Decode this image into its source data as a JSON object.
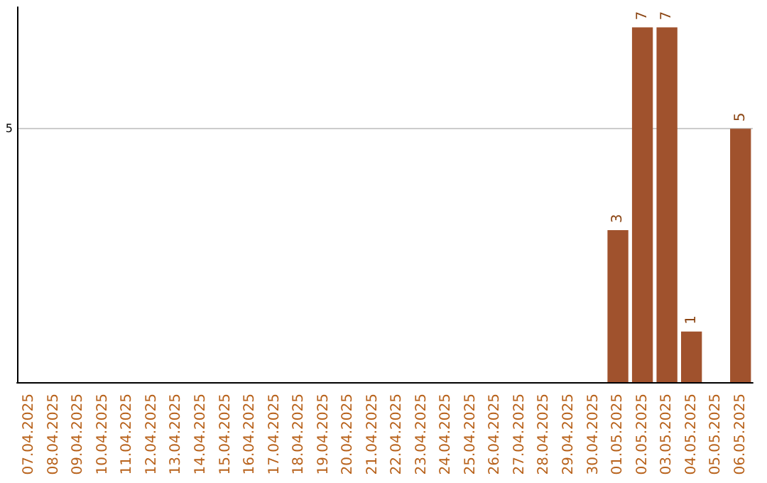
{
  "chart_data": {
    "type": "bar",
    "categories": [
      "07.04.2025",
      "08.04.2025",
      "09.04.2025",
      "10.04.2025",
      "11.04.2025",
      "12.04.2025",
      "13.04.2025",
      "14.04.2025",
      "15.04.2025",
      "16.04.2025",
      "17.04.2025",
      "18.04.2025",
      "19.04.2025",
      "20.04.2025",
      "21.04.2025",
      "22.04.2025",
      "23.04.2025",
      "24.04.2025",
      "25.04.2025",
      "26.04.2025",
      "27.04.2025",
      "28.04.2025",
      "29.04.2025",
      "30.04.2025",
      "01.05.2025",
      "02.05.2025",
      "03.05.2025",
      "04.05.2025",
      "05.05.2025",
      "06.05.2025"
    ],
    "values": [
      null,
      null,
      null,
      null,
      null,
      null,
      null,
      null,
      null,
      null,
      null,
      null,
      null,
      null,
      null,
      null,
      null,
      null,
      null,
      null,
      null,
      null,
      null,
      null,
      3,
      7,
      7,
      1,
      null,
      5
    ],
    "data_labels": true,
    "color": "#a0522d",
    "ylim": [
      0,
      7.4
    ],
    "yticks": [
      5
    ],
    "grid": "y"
  }
}
